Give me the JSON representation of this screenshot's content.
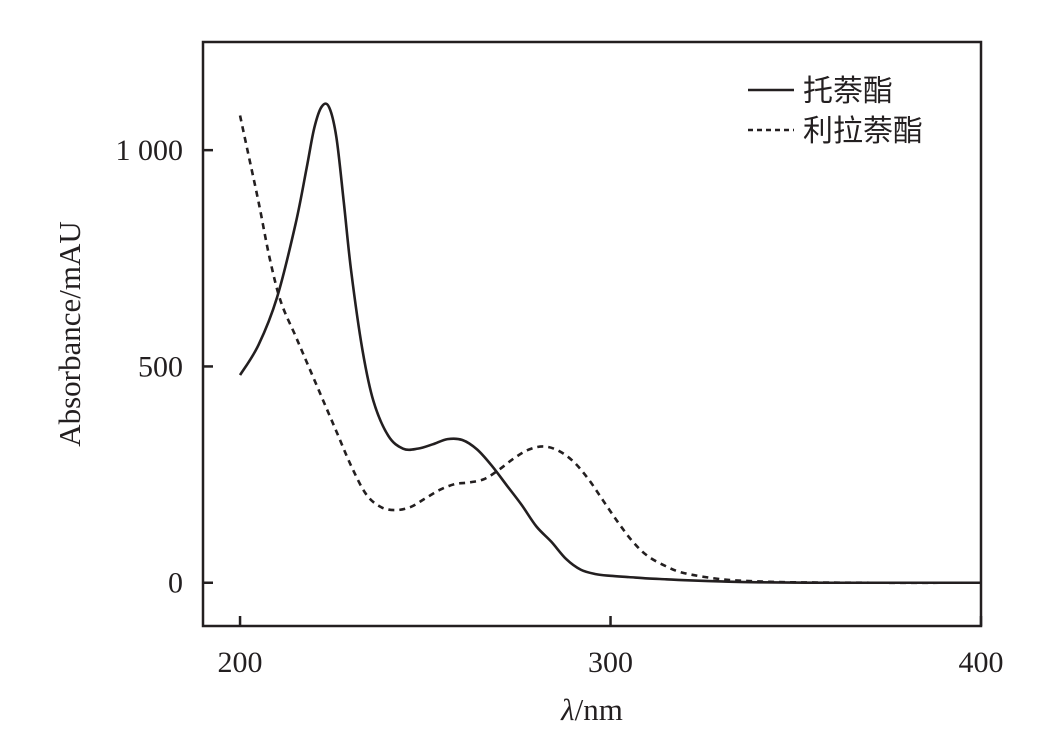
{
  "chart_data": {
    "type": "line",
    "xlabel_symbol": "λ",
    "xlabel_unit": "/nm",
    "ylabel": "Absorbance/mAU",
    "xlim": [
      190,
      400
    ],
    "ylim": [
      -100,
      1250
    ],
    "x_ticks": [
      200,
      300,
      400
    ],
    "x_tick_labels": [
      "200",
      "300",
      "400"
    ],
    "y_ticks": [
      0,
      500,
      1000
    ],
    "y_tick_labels": [
      "0",
      "500",
      "1 000"
    ],
    "grid": false,
    "legend_position": "top-right",
    "colors": {
      "line": "#231f20",
      "axis": "#231f20"
    },
    "series": [
      {
        "name": "托萘酯",
        "style": "solid",
        "x": [
          200,
          205,
          210,
          215,
          218,
          220,
          222,
          224,
          226,
          228,
          230,
          233,
          236,
          240,
          244,
          248,
          252,
          256,
          260,
          264,
          268,
          272,
          276,
          280,
          284,
          288,
          292,
          296,
          300,
          305,
          310,
          315,
          320,
          330,
          340,
          360,
          380,
          400
        ],
        "y": [
          480,
          550,
          660,
          830,
          960,
          1050,
          1100,
          1100,
          1030,
          880,
          720,
          540,
          420,
          340,
          310,
          310,
          320,
          332,
          330,
          308,
          270,
          225,
          180,
          130,
          95,
          55,
          30,
          20,
          16,
          13,
          10,
          8,
          6,
          3,
          1,
          0,
          0,
          0
        ]
      },
      {
        "name": "利拉萘酯",
        "style": "dashed",
        "x": [
          200,
          202,
          205,
          208,
          211,
          215,
          218,
          222,
          226,
          230,
          234,
          238,
          242,
          246,
          250,
          254,
          258,
          262,
          266,
          270,
          274,
          278,
          282,
          286,
          290,
          294,
          298,
          302,
          306,
          310,
          315,
          320,
          330,
          340,
          350,
          370,
          400
        ],
        "y": [
          1080,
          1000,
          880,
          750,
          650,
          570,
          510,
          430,
          350,
          270,
          205,
          175,
          168,
          175,
          195,
          215,
          228,
          232,
          240,
          262,
          288,
          308,
          315,
          305,
          280,
          240,
          190,
          140,
          95,
          62,
          38,
          22,
          8,
          3,
          1,
          0,
          0
        ]
      }
    ]
  }
}
